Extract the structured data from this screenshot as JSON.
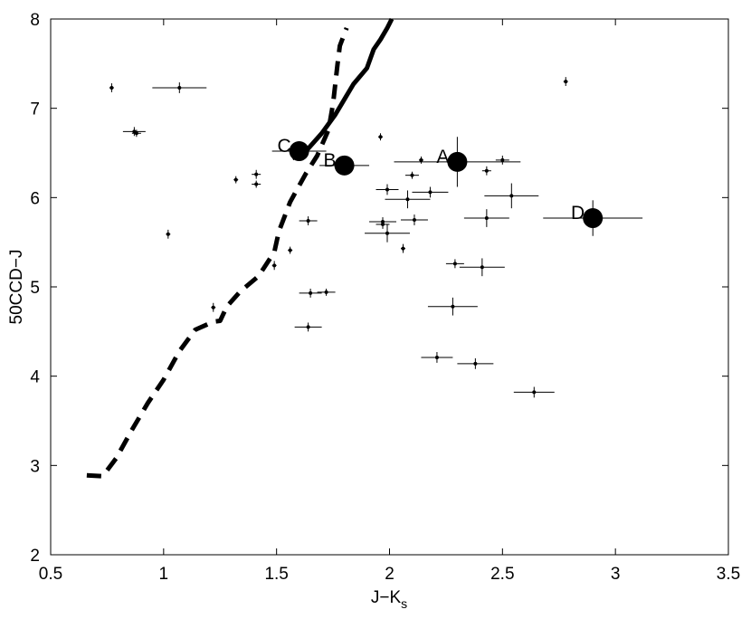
{
  "chart_data": {
    "type": "scatter",
    "title": "",
    "xlabel_main": "J−K",
    "xlabel_sub": "s",
    "ylabel": "50CCD−J",
    "xlim": [
      0.5,
      3.5
    ],
    "ylim": [
      2,
      8
    ],
    "grid": false,
    "xticks": [
      "0.5",
      "1",
      "1.5",
      "2",
      "2.5",
      "3",
      "3.5"
    ],
    "yticks": [
      "2",
      "3",
      "4",
      "5",
      "6",
      "7",
      "8"
    ],
    "points": [
      {
        "x": 0.77,
        "y": 7.23,
        "xerr": 0.01,
        "yerr": 0.05
      },
      {
        "x": 0.87,
        "y": 6.74,
        "xerr": 0.05,
        "yerr": 0.05
      },
      {
        "x": 0.88,
        "y": 6.72,
        "xerr": 0.02,
        "yerr": 0.04
      },
      {
        "x": 1.07,
        "y": 7.23,
        "xerr": 0.12,
        "yerr": 0.06
      },
      {
        "x": 1.02,
        "y": 5.59,
        "xerr": 0.01,
        "yerr": 0.05
      },
      {
        "x": 1.22,
        "y": 4.77,
        "xerr": 0.01,
        "yerr": 0.05
      },
      {
        "x": 1.32,
        "y": 6.2,
        "xerr": 0.01,
        "yerr": 0.04
      },
      {
        "x": 1.41,
        "y": 6.26,
        "xerr": 0.02,
        "yerr": 0.05
      },
      {
        "x": 1.41,
        "y": 6.15,
        "xerr": 0.02,
        "yerr": 0.04
      },
      {
        "x": 1.49,
        "y": 5.24,
        "xerr": 0.01,
        "yerr": 0.05
      },
      {
        "x": 1.56,
        "y": 5.41,
        "xerr": 0.01,
        "yerr": 0.04
      },
      {
        "x": 1.64,
        "y": 5.74,
        "xerr": 0.04,
        "yerr": 0.05
      },
      {
        "x": 1.65,
        "y": 4.93,
        "xerr": 0.05,
        "yerr": 0.05
      },
      {
        "x": 1.72,
        "y": 4.94,
        "xerr": 0.04,
        "yerr": 0.04
      },
      {
        "x": 1.64,
        "y": 4.55,
        "xerr": 0.06,
        "yerr": 0.05
      },
      {
        "x": 1.96,
        "y": 6.68,
        "xerr": 0.01,
        "yerr": 0.04
      },
      {
        "x": 1.99,
        "y": 6.09,
        "xerr": 0.05,
        "yerr": 0.06
      },
      {
        "x": 1.97,
        "y": 5.73,
        "xerr": 0.06,
        "yerr": 0.05
      },
      {
        "x": 1.97,
        "y": 5.7,
        "xerr": 0.03,
        "yerr": 0.05
      },
      {
        "x": 1.99,
        "y": 5.6,
        "xerr": 0.1,
        "yerr": 0.1
      },
      {
        "x": 2.06,
        "y": 5.43,
        "xerr": 0.01,
        "yerr": 0.05
      },
      {
        "x": 2.1,
        "y": 6.25,
        "xerr": 0.03,
        "yerr": 0.04
      },
      {
        "x": 2.14,
        "y": 6.42,
        "xerr": 0.01,
        "yerr": 0.04
      },
      {
        "x": 2.08,
        "y": 5.98,
        "xerr": 0.1,
        "yerr": 0.1
      },
      {
        "x": 2.18,
        "y": 6.06,
        "xerr": 0.08,
        "yerr": 0.06
      },
      {
        "x": 2.11,
        "y": 5.75,
        "xerr": 0.06,
        "yerr": 0.06
      },
      {
        "x": 2.29,
        "y": 5.26,
        "xerr": 0.04,
        "yerr": 0.05
      },
      {
        "x": 2.28,
        "y": 4.78,
        "xerr": 0.11,
        "yerr": 0.1
      },
      {
        "x": 2.41,
        "y": 5.22,
        "xerr": 0.1,
        "yerr": 0.1
      },
      {
        "x": 2.43,
        "y": 6.3,
        "xerr": 0.02,
        "yerr": 0.05
      },
      {
        "x": 2.5,
        "y": 6.42,
        "xerr": 0.03,
        "yerr": 0.05
      },
      {
        "x": 2.43,
        "y": 5.77,
        "xerr": 0.1,
        "yerr": 0.1
      },
      {
        "x": 2.54,
        "y": 6.02,
        "xerr": 0.12,
        "yerr": 0.14
      },
      {
        "x": 2.21,
        "y": 4.21,
        "xerr": 0.07,
        "yerr": 0.06
      },
      {
        "x": 2.38,
        "y": 4.14,
        "xerr": 0.08,
        "yerr": 0.06
      },
      {
        "x": 2.64,
        "y": 3.82,
        "xerr": 0.09,
        "yerr": 0.06
      },
      {
        "x": 2.78,
        "y": 7.3,
        "xerr": 0.01,
        "yerr": 0.05
      }
    ],
    "labeled_points": [
      {
        "label": "A",
        "x": 2.3,
        "y": 6.4,
        "xerr": 0.28,
        "yerr": 0.28
      },
      {
        "label": "B",
        "x": 1.8,
        "y": 6.36,
        "xerr": 0.11,
        "yerr": 0.03
      },
      {
        "label": "C",
        "x": 1.6,
        "y": 6.52,
        "xerr": 0.12,
        "yerr": 0.04
      },
      {
        "label": "D",
        "x": 2.9,
        "y": 5.77,
        "xerr": 0.22,
        "yerr": 0.2
      }
    ],
    "curves": [
      {
        "style": "dashed",
        "points": [
          [
            0.66,
            2.89
          ],
          [
            0.73,
            2.88
          ],
          [
            0.79,
            3.08
          ],
          [
            0.86,
            3.4
          ],
          [
            0.93,
            3.7
          ],
          [
            1.0,
            3.96
          ],
          [
            1.07,
            4.28
          ],
          [
            1.14,
            4.52
          ],
          [
            1.22,
            4.61
          ],
          [
            1.25,
            4.62
          ],
          [
            1.28,
            4.78
          ],
          [
            1.34,
            4.95
          ],
          [
            1.42,
            5.12
          ],
          [
            1.49,
            5.39
          ],
          [
            1.51,
            5.62
          ],
          [
            1.56,
            5.95
          ],
          [
            1.63,
            6.27
          ],
          [
            1.68,
            6.47
          ],
          [
            1.73,
            6.76
          ],
          [
            1.75,
            7.05
          ],
          [
            1.77,
            7.5
          ],
          [
            1.78,
            7.7
          ],
          [
            1.81,
            7.9
          ]
        ]
      },
      {
        "style": "solid",
        "points": [
          [
            1.57,
            6.44
          ],
          [
            1.63,
            6.52
          ],
          [
            1.7,
            6.72
          ],
          [
            1.76,
            6.93
          ],
          [
            1.8,
            7.1
          ],
          [
            1.84,
            7.27
          ],
          [
            1.9,
            7.45
          ],
          [
            1.93,
            7.66
          ],
          [
            1.96,
            7.77
          ],
          [
            1.99,
            7.9
          ],
          [
            2.01,
            8.0
          ]
        ]
      }
    ]
  }
}
